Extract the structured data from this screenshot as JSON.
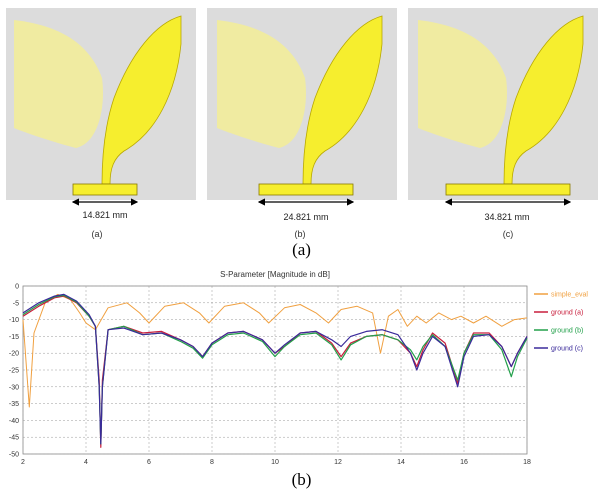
{
  "top_panels": {
    "items": [
      {
        "dimension": "14.821 mm",
        "label": "(a)",
        "ground_fraction": 0.35
      },
      {
        "dimension": "24.821 mm",
        "label": "(b)",
        "ground_fraction": 0.57
      },
      {
        "dimension": "34.821 mm",
        "label": "(c)",
        "ground_fraction": 0.8
      }
    ]
  },
  "captions": {
    "top": "(a)",
    "bottom": "(b)"
  },
  "colors": {
    "antenna": "#f6ee2e",
    "antenna_faded": "#f2ec9a",
    "panel_bg": "#dcdcdc"
  },
  "chart_data": {
    "type": "line",
    "title": "S-Parameter [Magnitude in dB]",
    "xlabel": "",
    "ylabel": "",
    "xlim": [
      2,
      18
    ],
    "ylim": [
      -50,
      0
    ],
    "x_ticks": [
      2,
      4,
      6,
      8,
      10,
      12,
      14,
      16,
      18
    ],
    "y_ticks": [
      0,
      -5,
      -10,
      -15,
      -20,
      -25,
      -30,
      -35,
      -40,
      -45,
      -50
    ],
    "grid": true,
    "legend_position": "right",
    "series": [
      {
        "name": "simple_eval",
        "color": "#f0a040",
        "points": [
          [
            2,
            -10
          ],
          [
            2.2,
            -36
          ],
          [
            2.35,
            -14
          ],
          [
            2.7,
            -5
          ],
          [
            3.1,
            -2.5
          ],
          [
            3.5,
            -4
          ],
          [
            3.8,
            -8
          ],
          [
            4,
            -11
          ],
          [
            4.3,
            -13
          ],
          [
            4.7,
            -6.5
          ],
          [
            5.3,
            -5
          ],
          [
            5.7,
            -8
          ],
          [
            6,
            -11
          ],
          [
            6.5,
            -6
          ],
          [
            7.1,
            -5
          ],
          [
            7.6,
            -8
          ],
          [
            7.9,
            -11
          ],
          [
            8.4,
            -6
          ],
          [
            9,
            -5
          ],
          [
            9.5,
            -8
          ],
          [
            9.8,
            -11
          ],
          [
            10.3,
            -6.5
          ],
          [
            10.8,
            -5.5
          ],
          [
            11.3,
            -8
          ],
          [
            11.7,
            -11
          ],
          [
            12.1,
            -7
          ],
          [
            12.6,
            -6
          ],
          [
            13.1,
            -8
          ],
          [
            13.35,
            -20
          ],
          [
            13.6,
            -9
          ],
          [
            13.9,
            -7
          ],
          [
            14.2,
            -12
          ],
          [
            14.5,
            -9
          ],
          [
            14.8,
            -11
          ],
          [
            15.2,
            -8
          ],
          [
            15.6,
            -10
          ],
          [
            15.9,
            -9
          ],
          [
            16.3,
            -11
          ],
          [
            16.7,
            -9
          ],
          [
            17.2,
            -12
          ],
          [
            17.6,
            -10
          ],
          [
            18,
            -9.5
          ]
        ]
      },
      {
        "name": "ground (a)",
        "color": "#c81e3c",
        "points": [
          [
            2,
            -9
          ],
          [
            2.5,
            -6
          ],
          [
            3,
            -3.5
          ],
          [
            3.3,
            -3
          ],
          [
            3.7,
            -5
          ],
          [
            4.1,
            -9
          ],
          [
            4.3,
            -12
          ],
          [
            4.42,
            -28
          ],
          [
            4.47,
            -48
          ],
          [
            4.52,
            -28
          ],
          [
            4.7,
            -13
          ],
          [
            5.2,
            -12
          ],
          [
            5.8,
            -14
          ],
          [
            6.4,
            -13.5
          ],
          [
            7,
            -16
          ],
          [
            7.4,
            -18
          ],
          [
            7.7,
            -21
          ],
          [
            8,
            -17
          ],
          [
            8.5,
            -14
          ],
          [
            9,
            -13.5
          ],
          [
            9.6,
            -16
          ],
          [
            10,
            -20
          ],
          [
            10.3,
            -18
          ],
          [
            10.8,
            -14
          ],
          [
            11.3,
            -13.5
          ],
          [
            11.8,
            -17
          ],
          [
            12.1,
            -21
          ],
          [
            12.4,
            -17
          ],
          [
            12.9,
            -15
          ],
          [
            13.4,
            -14.5
          ],
          [
            13.9,
            -16
          ],
          [
            14.3,
            -20
          ],
          [
            14.5,
            -24
          ],
          [
            14.7,
            -19
          ],
          [
            15,
            -14
          ],
          [
            15.4,
            -17
          ],
          [
            15.8,
            -29
          ],
          [
            16,
            -20
          ],
          [
            16.3,
            -14
          ],
          [
            16.8,
            -14
          ],
          [
            17.2,
            -18
          ],
          [
            17.5,
            -24
          ],
          [
            17.7,
            -20
          ],
          [
            18,
            -15
          ]
        ]
      },
      {
        "name": "ground (b)",
        "color": "#22a04a",
        "points": [
          [
            2,
            -8.5
          ],
          [
            2.5,
            -5.5
          ],
          [
            3,
            -3.2
          ],
          [
            3.3,
            -2.8
          ],
          [
            3.7,
            -4.8
          ],
          [
            4.1,
            -9
          ],
          [
            4.3,
            -12
          ],
          [
            4.42,
            -30
          ],
          [
            4.47,
            -47
          ],
          [
            4.52,
            -30
          ],
          [
            4.7,
            -13
          ],
          [
            5.2,
            -12
          ],
          [
            5.8,
            -14.5
          ],
          [
            6.4,
            -14
          ],
          [
            7,
            -16.5
          ],
          [
            7.4,
            -18.5
          ],
          [
            7.7,
            -21.5
          ],
          [
            8,
            -17.5
          ],
          [
            8.5,
            -14.5
          ],
          [
            9,
            -14
          ],
          [
            9.6,
            -16.5
          ],
          [
            10,
            -21
          ],
          [
            10.3,
            -18
          ],
          [
            10.8,
            -14.5
          ],
          [
            11.3,
            -14
          ],
          [
            11.8,
            -17.5
          ],
          [
            12.1,
            -22
          ],
          [
            12.4,
            -17.5
          ],
          [
            12.9,
            -15
          ],
          [
            13.4,
            -14.5
          ],
          [
            13.9,
            -16
          ],
          [
            14.3,
            -19
          ],
          [
            14.5,
            -22
          ],
          [
            14.7,
            -18
          ],
          [
            15,
            -14.5
          ],
          [
            15.4,
            -18
          ],
          [
            15.8,
            -28
          ],
          [
            16,
            -20
          ],
          [
            16.3,
            -14.5
          ],
          [
            16.8,
            -14.5
          ],
          [
            17.2,
            -19
          ],
          [
            17.5,
            -27
          ],
          [
            17.7,
            -21
          ],
          [
            18,
            -15.5
          ]
        ]
      },
      {
        "name": "ground (c)",
        "color": "#3a2a9a",
        "points": [
          [
            2,
            -8
          ],
          [
            2.5,
            -5
          ],
          [
            3,
            -3
          ],
          [
            3.3,
            -2.5
          ],
          [
            3.7,
            -4.5
          ],
          [
            4.1,
            -8.5
          ],
          [
            4.3,
            -12
          ],
          [
            4.42,
            -30
          ],
          [
            4.47,
            -47
          ],
          [
            4.52,
            -30
          ],
          [
            4.7,
            -13
          ],
          [
            5.2,
            -12.5
          ],
          [
            5.8,
            -14.5
          ],
          [
            6.4,
            -14
          ],
          [
            7,
            -16
          ],
          [
            7.4,
            -18
          ],
          [
            7.7,
            -21
          ],
          [
            8,
            -17
          ],
          [
            8.5,
            -14
          ],
          [
            9,
            -13.5
          ],
          [
            9.6,
            -16
          ],
          [
            10,
            -20
          ],
          [
            10.3,
            -17.5
          ],
          [
            10.8,
            -14
          ],
          [
            11.3,
            -13.5
          ],
          [
            11.8,
            -16
          ],
          [
            12.1,
            -18
          ],
          [
            12.4,
            -15
          ],
          [
            12.9,
            -13.5
          ],
          [
            13.4,
            -13
          ],
          [
            13.9,
            -14.5
          ],
          [
            14.3,
            -20
          ],
          [
            14.5,
            -25
          ],
          [
            14.7,
            -20
          ],
          [
            15,
            -15
          ],
          [
            15.4,
            -18
          ],
          [
            15.8,
            -30
          ],
          [
            16,
            -21
          ],
          [
            16.3,
            -15
          ],
          [
            16.8,
            -14.5
          ],
          [
            17.2,
            -18
          ],
          [
            17.5,
            -24
          ],
          [
            17.7,
            -20
          ],
          [
            18,
            -15
          ]
        ]
      }
    ]
  }
}
